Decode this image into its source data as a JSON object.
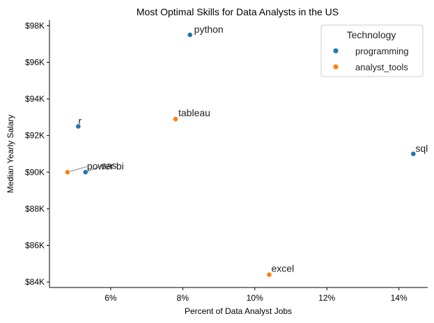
{
  "chart_data": {
    "type": "scatter",
    "title": "Most Optimal Skills for Data Analysts in the US",
    "xlabel": "Percent of Data Analyst Jobs",
    "ylabel": "Median Yearly Salary",
    "xlim": [
      4.3,
      14.8
    ],
    "ylim": [
      83.7,
      98.3
    ],
    "x_ticks": [
      6,
      8,
      10,
      12,
      14
    ],
    "x_tick_labels": [
      "6%",
      "8%",
      "10%",
      "12%",
      "14%"
    ],
    "y_ticks": [
      84,
      86,
      88,
      90,
      92,
      94,
      96,
      98
    ],
    "y_tick_labels": [
      "$84K",
      "$86K",
      "$88K",
      "$90K",
      "$92K",
      "$94K",
      "$96K",
      "$98K"
    ],
    "legend": {
      "title": "Technology",
      "placement": "top-right",
      "entries": [
        {
          "name": "programming",
          "color": "#1f77b4"
        },
        {
          "name": "analyst_tools",
          "color": "#ff7f0e"
        }
      ]
    },
    "series": [
      {
        "name": "programming",
        "color": "#1f77b4",
        "points": [
          {
            "label": "python",
            "x": 8.2,
            "y": 97.5
          },
          {
            "label": "r",
            "x": 5.1,
            "y": 92.5
          },
          {
            "label": "sql",
            "x": 14.4,
            "y": 91.0
          },
          {
            "label": "sas",
            "x": 5.3,
            "y": 90.0
          }
        ]
      },
      {
        "name": "analyst_tools",
        "color": "#ff7f0e",
        "points": [
          {
            "label": "tableau",
            "x": 7.8,
            "y": 92.9
          },
          {
            "label": "power bi",
            "x": 4.8,
            "y": 90.0
          },
          {
            "label": "excel",
            "x": 10.4,
            "y": 84.4
          }
        ]
      }
    ]
  }
}
